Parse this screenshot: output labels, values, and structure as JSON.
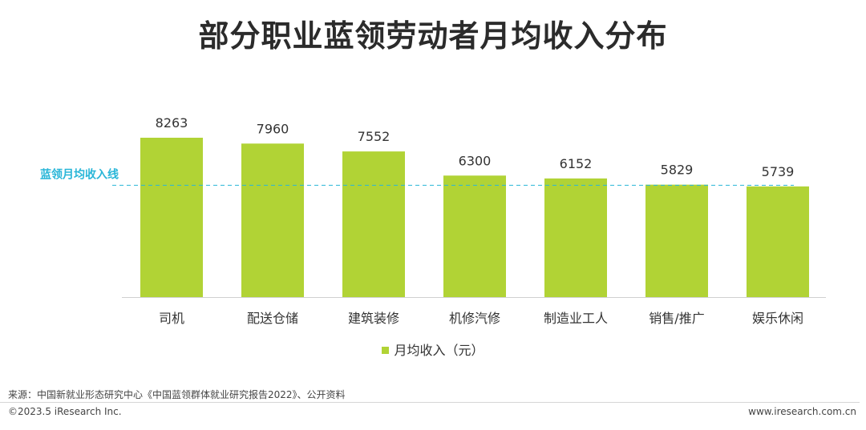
{
  "title": "部分职业蓝领劳动者月均收入分布",
  "chart_data": {
    "type": "bar",
    "categories": [
      "司机",
      "配送仓储",
      "建筑装修",
      "机修汽修",
      "制造业工人",
      "销售/推广",
      "娱乐休闲"
    ],
    "series": [
      {
        "name": "月均收入（元）",
        "values": [
          8263,
          7960,
          7552,
          6300,
          6152,
          5829,
          5739
        ]
      }
    ],
    "reference_line": {
      "label": "蓝领月均收入线",
      "value": 5800
    },
    "bar_color": "#b1d335",
    "reference_color": "#29b6d8",
    "ylim": [
      0,
      9000
    ],
    "grid": false,
    "legend_position": "bottom"
  },
  "source": "来源：中国新就业形态研究中心《中国蓝领群体就业研究报告2022》、公开资料",
  "copyright": "©2023.5 iResearch Inc.",
  "website": "www.iresearch.com.cn"
}
